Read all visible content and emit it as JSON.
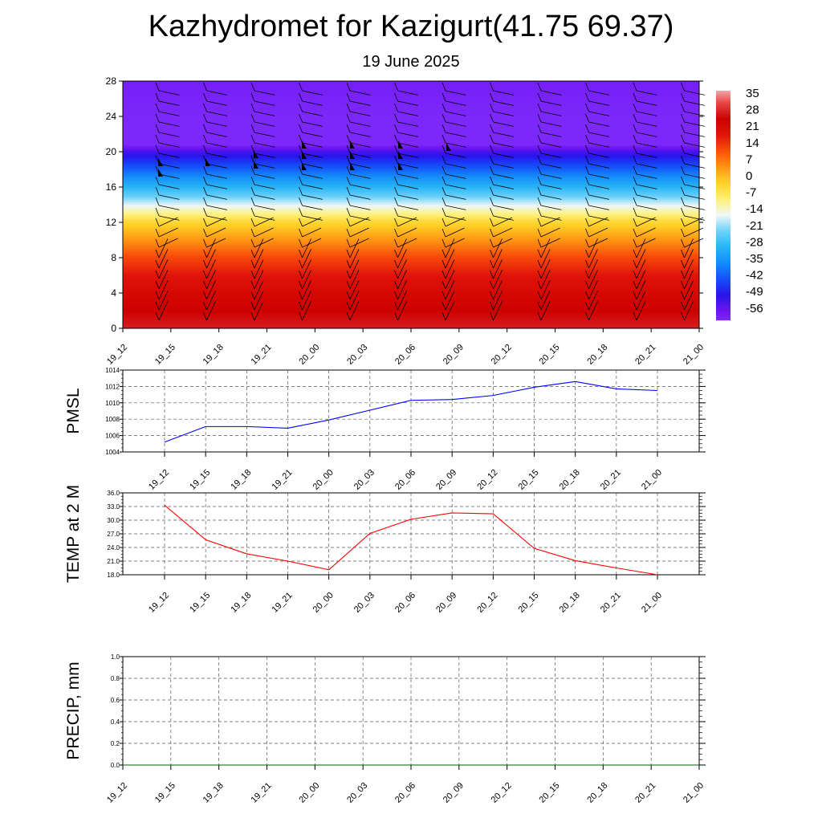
{
  "title": "Kazhydromet for Kazigurt(41.75 69.37)",
  "subtitle": "19 June 2025",
  "chart_data": [
    {
      "type": "heatmap",
      "xlabel": "",
      "ylabel": "",
      "x_tick_labels": [
        "19_12",
        "19_15",
        "19_18",
        "19_21",
        "20_00",
        "20_03",
        "20_06",
        "20_09",
        "20_12",
        "20_15",
        "20_18",
        "20_21",
        "21_00"
      ],
      "y_ticks": [
        0,
        4,
        8,
        12,
        16,
        20,
        24,
        28
      ],
      "ylim": [
        0,
        28
      ],
      "colorbar": {
        "labels": [
          "35",
          "28",
          "21",
          "14",
          "7",
          "0",
          "-7",
          "-14",
          "-21",
          "-28",
          "-35",
          "-42",
          "-49",
          "-56"
        ],
        "range": [
          -60,
          40
        ]
      },
      "profile": {
        "heights": [
          0,
          2,
          4,
          6,
          8,
          10,
          12,
          13,
          14,
          15,
          16,
          17,
          18,
          19,
          20,
          21,
          22,
          24,
          28
        ],
        "values": [
          31,
          28,
          25,
          21,
          15,
          7,
          -1,
          -8,
          -15,
          -22,
          -28,
          -34,
          -40,
          -46,
          -52,
          -62,
          -64,
          -60,
          -58
        ]
      },
      "overlay": "wind barbs",
      "grid": false
    },
    {
      "type": "line",
      "ylabel": "PMSL",
      "x_tick_labels": [
        "19_12",
        "19_15",
        "19_18",
        "19_21",
        "20_00",
        "20_03",
        "20_06",
        "20_09",
        "20_12",
        "20_15",
        "20_18",
        "20_21",
        "21_00"
      ],
      "y_ticks": [
        "1004",
        "1006",
        "1008",
        "1010",
        "1012",
        "1014"
      ],
      "ylim": [
        1004,
        1014
      ],
      "series": [
        {
          "values": [
            1005.2,
            1007.1,
            1007.1,
            1006.9,
            1007.9,
            1009.1,
            1010.3,
            1010.4,
            1010.9,
            1011.9,
            1012.6,
            1011.7,
            1011.5
          ],
          "color": "#0000ff"
        }
      ],
      "grid": true
    },
    {
      "type": "line",
      "ylabel": "TEMP at 2 M",
      "x_tick_labels": [
        "19_12",
        "19_15",
        "19_18",
        "19_21",
        "20_00",
        "20_03",
        "20_06",
        "20_09",
        "20_12",
        "20_15",
        "20_18",
        "20_21",
        "21_00"
      ],
      "y_ticks": [
        "18.0",
        "21.0",
        "24.0",
        "27.0",
        "30.0",
        "33.0",
        "36.0"
      ],
      "ylim": [
        18,
        36
      ],
      "series": [
        {
          "values": [
            33.3,
            25.7,
            22.6,
            21.0,
            19.1,
            27.1,
            30.2,
            31.6,
            31.4,
            23.8,
            21.1,
            19.5,
            18.0
          ],
          "color": "#ff0000"
        }
      ],
      "grid": true
    },
    {
      "type": "line",
      "ylabel": "PRECIP, mm",
      "x_tick_labels": [
        "19_12",
        "19_15",
        "19_18",
        "19_21",
        "20_00",
        "20_03",
        "20_06",
        "20_09",
        "20_12",
        "20_15",
        "20_18",
        "20_21",
        "21_00"
      ],
      "y_ticks": [
        "0.0",
        "0.2",
        "0.4",
        "0.6",
        "0.8",
        "1.0"
      ],
      "ylim": [
        0,
        1
      ],
      "series": [
        {
          "values": [
            0,
            0,
            0,
            0,
            0,
            0,
            0,
            0,
            0,
            0,
            0,
            0,
            0
          ],
          "color": "#006400"
        }
      ],
      "grid": true
    }
  ]
}
